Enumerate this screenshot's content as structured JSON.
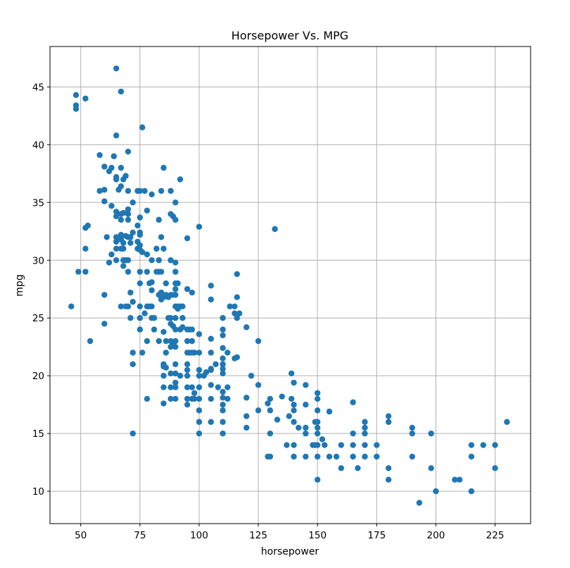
{
  "chart_data": {
    "type": "scatter",
    "title": "Horsepower Vs. MPG",
    "xlabel": "horsepower",
    "ylabel": "mpg",
    "xlim": [
      37,
      240
    ],
    "ylim": [
      7.2,
      48.5
    ],
    "xticks": [
      50,
      75,
      100,
      125,
      150,
      175,
      200,
      225
    ],
    "yticks": [
      10,
      15,
      20,
      25,
      30,
      35,
      40,
      45
    ],
    "grid": true,
    "color": "#1f77b4",
    "points": [
      [
        46,
        26
      ],
      [
        48,
        43.1
      ],
      [
        48,
        43.4
      ],
      [
        48,
        44.3
      ],
      [
        49,
        29
      ],
      [
        52,
        29
      ],
      [
        52,
        31
      ],
      [
        52,
        32.8
      ],
      [
        52,
        44
      ],
      [
        53,
        33
      ],
      [
        54,
        23
      ],
      [
        58,
        36
      ],
      [
        58,
        39.1
      ],
      [
        60,
        27
      ],
      [
        60,
        24.5
      ],
      [
        60,
        36.1
      ],
      [
        60,
        38.1
      ],
      [
        60,
        35.1
      ],
      [
        61,
        32
      ],
      [
        62,
        29.8
      ],
      [
        62,
        37.7
      ],
      [
        63,
        30.5
      ],
      [
        63,
        34.7
      ],
      [
        63,
        38
      ],
      [
        64,
        39
      ],
      [
        65,
        46.6
      ],
      [
        65,
        40.8
      ],
      [
        65,
        37.2
      ],
      [
        65,
        37
      ],
      [
        65,
        34.2
      ],
      [
        65,
        33.8
      ],
      [
        65,
        32
      ],
      [
        65,
        31.6
      ],
      [
        65,
        31
      ],
      [
        65,
        30
      ],
      [
        66,
        36.1
      ],
      [
        67,
        44.6
      ],
      [
        67,
        38
      ],
      [
        67,
        36.4
      ],
      [
        67,
        34
      ],
      [
        67,
        33.5
      ],
      [
        67,
        32.2
      ],
      [
        67,
        31.8
      ],
      [
        67,
        31
      ],
      [
        67,
        26
      ],
      [
        68,
        37
      ],
      [
        68,
        34.1
      ],
      [
        68,
        31.5
      ],
      [
        68,
        31
      ],
      [
        68,
        29.5
      ],
      [
        68,
        30
      ],
      [
        69,
        37.3
      ],
      [
        69,
        32.1
      ],
      [
        69,
        30
      ],
      [
        69,
        26
      ],
      [
        70,
        39.4
      ],
      [
        70,
        36
      ],
      [
        70,
        34.4
      ],
      [
        70,
        34
      ],
      [
        70,
        33.5
      ],
      [
        70,
        32
      ],
      [
        70,
        30
      ],
      [
        70,
        29
      ],
      [
        70,
        26
      ],
      [
        71,
        31.5
      ],
      [
        71,
        32
      ],
      [
        71,
        27.2
      ],
      [
        71,
        25
      ],
      [
        72,
        35
      ],
      [
        72,
        32.4
      ],
      [
        72,
        26.4
      ],
      [
        72,
        22
      ],
      [
        72,
        21
      ],
      [
        72,
        15
      ],
      [
        74,
        36
      ],
      [
        74,
        33
      ],
      [
        74,
        31.6
      ],
      [
        74,
        31
      ],
      [
        75,
        36
      ],
      [
        75,
        33.7
      ],
      [
        75,
        32.4
      ],
      [
        75,
        32.2
      ],
      [
        75,
        31.3
      ],
      [
        75,
        30.9
      ],
      [
        75,
        29
      ],
      [
        75,
        28
      ],
      [
        75,
        26
      ],
      [
        75,
        25
      ],
      [
        75,
        24
      ],
      [
        76,
        41.5
      ],
      [
        76,
        30.7
      ],
      [
        76,
        22
      ],
      [
        77,
        25.4
      ],
      [
        77,
        36
      ],
      [
        78,
        34.3
      ],
      [
        78,
        30.5
      ],
      [
        78,
        29
      ],
      [
        78,
        26
      ],
      [
        78,
        23
      ],
      [
        78,
        18
      ],
      [
        79,
        28
      ],
      [
        79,
        26
      ],
      [
        80,
        35.7
      ],
      [
        80,
        30
      ],
      [
        80,
        28.1
      ],
      [
        80,
        27.4
      ],
      [
        80,
        26
      ],
      [
        80,
        25
      ],
      [
        81,
        25
      ],
      [
        81,
        24
      ],
      [
        82,
        31
      ],
      [
        82,
        29
      ],
      [
        83,
        33.5
      ],
      [
        83,
        30
      ],
      [
        83,
        27
      ],
      [
        83,
        23
      ],
      [
        83,
        29
      ],
      [
        84,
        36
      ],
      [
        84,
        32
      ],
      [
        84,
        29
      ],
      [
        84,
        27.2
      ],
      [
        84,
        26.6
      ],
      [
        85,
        38
      ],
      [
        85,
        31
      ],
      [
        85,
        26.8
      ],
      [
        85,
        23.8
      ],
      [
        85,
        21
      ],
      [
        85,
        20.8
      ],
      [
        85,
        20
      ],
      [
        85,
        19
      ],
      [
        85,
        17.6
      ],
      [
        86,
        20.7
      ],
      [
        86,
        22
      ],
      [
        86,
        27
      ],
      [
        86,
        28
      ],
      [
        86,
        23
      ],
      [
        87,
        25
      ],
      [
        87,
        26.8
      ],
      [
        88,
        36
      ],
      [
        88,
        34
      ],
      [
        88,
        30
      ],
      [
        88,
        27
      ],
      [
        88,
        25
      ],
      [
        88,
        24.5
      ],
      [
        88,
        23
      ],
      [
        88,
        22.5
      ],
      [
        88,
        20.2
      ],
      [
        88,
        19
      ],
      [
        88,
        18
      ],
      [
        89,
        33.8
      ],
      [
        89,
        27
      ],
      [
        89,
        24.3
      ],
      [
        89,
        22.6
      ],
      [
        90,
        35
      ],
      [
        90,
        33.5
      ],
      [
        90,
        29.8
      ],
      [
        90,
        29
      ],
      [
        90,
        28
      ],
      [
        90,
        27.5
      ],
      [
        90,
        27
      ],
      [
        90,
        26
      ],
      [
        90,
        25
      ],
      [
        90,
        24
      ],
      [
        90,
        23
      ],
      [
        90,
        22.5
      ],
      [
        90,
        21
      ],
      [
        90,
        20.2
      ],
      [
        90,
        19.4
      ],
      [
        90,
        19
      ],
      [
        90,
        18
      ],
      [
        91,
        26
      ],
      [
        91,
        28
      ],
      [
        91,
        25.8
      ],
      [
        92,
        37
      ],
      [
        92,
        26
      ],
      [
        92,
        24
      ],
      [
        92,
        20
      ],
      [
        93,
        26
      ],
      [
        93,
        24.2
      ],
      [
        93,
        25
      ],
      [
        95,
        31.9
      ],
      [
        95,
        27.5
      ],
      [
        95,
        24
      ],
      [
        95,
        23
      ],
      [
        95,
        22
      ],
      [
        95,
        21
      ],
      [
        95,
        20.5
      ],
      [
        95,
        19
      ],
      [
        95,
        18
      ],
      [
        95,
        17.5
      ],
      [
        95,
        20
      ],
      [
        96,
        24
      ],
      [
        96,
        22
      ],
      [
        97,
        27.2
      ],
      [
        97,
        24
      ],
      [
        97,
        23
      ],
      [
        97,
        22
      ],
      [
        97,
        19
      ],
      [
        97,
        18
      ],
      [
        98,
        22
      ],
      [
        98,
        18.5
      ],
      [
        98,
        18
      ],
      [
        100,
        32.9
      ],
      [
        100,
        23.6
      ],
      [
        100,
        22
      ],
      [
        100,
        20.5
      ],
      [
        100,
        20
      ],
      [
        100,
        19
      ],
      [
        100,
        18
      ],
      [
        100,
        17
      ],
      [
        100,
        16
      ],
      [
        100,
        15
      ],
      [
        102,
        20
      ],
      [
        103,
        20.3
      ],
      [
        105,
        27.8
      ],
      [
        105,
        26.6
      ],
      [
        105,
        23.2
      ],
      [
        105,
        22
      ],
      [
        105,
        20.6
      ],
      [
        105,
        20.5
      ],
      [
        105,
        19.2
      ],
      [
        105,
        18
      ],
      [
        105,
        16
      ],
      [
        107,
        21
      ],
      [
        108,
        19
      ],
      [
        110,
        25
      ],
      [
        110,
        24
      ],
      [
        110,
        23.5
      ],
      [
        110,
        22.4
      ],
      [
        110,
        21.5
      ],
      [
        110,
        21
      ],
      [
        110,
        20.6
      ],
      [
        110,
        20.2
      ],
      [
        110,
        18.6
      ],
      [
        110,
        18.1
      ],
      [
        110,
        17.5
      ],
      [
        110,
        17
      ],
      [
        110,
        16
      ],
      [
        110,
        15
      ],
      [
        112,
        22
      ],
      [
        112,
        19
      ],
      [
        112,
        18
      ],
      [
        113,
        26
      ],
      [
        115,
        26
      ],
      [
        115,
        25.4
      ],
      [
        115,
        21.5
      ],
      [
        116,
        28.8
      ],
      [
        116,
        26.8
      ],
      [
        116,
        25
      ],
      [
        116,
        21.6
      ],
      [
        117,
        25.4
      ],
      [
        120,
        24.2
      ],
      [
        120,
        18.1
      ],
      [
        120,
        16.5
      ],
      [
        120,
        15.5
      ],
      [
        122,
        20
      ],
      [
        125,
        23
      ],
      [
        125,
        19.2
      ],
      [
        125,
        17
      ],
      [
        129,
        17.6
      ],
      [
        129,
        13
      ],
      [
        130,
        18
      ],
      [
        130,
        17
      ],
      [
        130,
        15
      ],
      [
        130,
        13
      ],
      [
        132,
        32.7
      ],
      [
        133,
        16.2
      ],
      [
        135,
        18.2
      ],
      [
        137,
        14
      ],
      [
        138,
        16.5
      ],
      [
        139,
        20.2
      ],
      [
        139,
        18
      ],
      [
        140,
        19.4
      ],
      [
        140,
        17.5
      ],
      [
        140,
        17
      ],
      [
        140,
        16
      ],
      [
        140,
        14
      ],
      [
        140,
        13
      ],
      [
        142,
        15.5
      ],
      [
        145,
        19.2
      ],
      [
        145,
        17.5
      ],
      [
        145,
        15.5
      ],
      [
        145,
        15
      ],
      [
        145,
        13
      ],
      [
        148,
        14
      ],
      [
        149,
        14
      ],
      [
        149,
        16
      ],
      [
        150,
        18.5
      ],
      [
        150,
        18
      ],
      [
        150,
        17
      ],
      [
        150,
        16
      ],
      [
        150,
        15.5
      ],
      [
        150,
        15
      ],
      [
        150,
        14
      ],
      [
        150,
        13
      ],
      [
        150,
        11
      ],
      [
        152,
        14.5
      ],
      [
        153,
        14
      ],
      [
        155,
        16.9
      ],
      [
        155,
        13
      ],
      [
        158,
        13
      ],
      [
        160,
        14
      ],
      [
        160,
        12
      ],
      [
        165,
        17.7
      ],
      [
        165,
        15
      ],
      [
        165,
        14
      ],
      [
        165,
        13
      ],
      [
        167,
        12
      ],
      [
        170,
        16
      ],
      [
        170,
        15.5
      ],
      [
        170,
        15
      ],
      [
        170,
        14
      ],
      [
        170,
        13
      ],
      [
        175,
        14
      ],
      [
        175,
        13
      ],
      [
        180,
        16.5
      ],
      [
        180,
        16
      ],
      [
        180,
        12
      ],
      [
        180,
        11
      ],
      [
        190,
        15.5
      ],
      [
        190,
        15
      ],
      [
        190,
        13
      ],
      [
        193,
        9
      ],
      [
        198,
        15
      ],
      [
        198,
        12
      ],
      [
        200,
        10
      ],
      [
        208,
        11
      ],
      [
        210,
        11
      ],
      [
        215,
        14
      ],
      [
        215,
        13
      ],
      [
        215,
        10
      ],
      [
        220,
        14
      ],
      [
        225,
        14
      ],
      [
        225,
        12
      ],
      [
        230,
        16
      ]
    ]
  }
}
